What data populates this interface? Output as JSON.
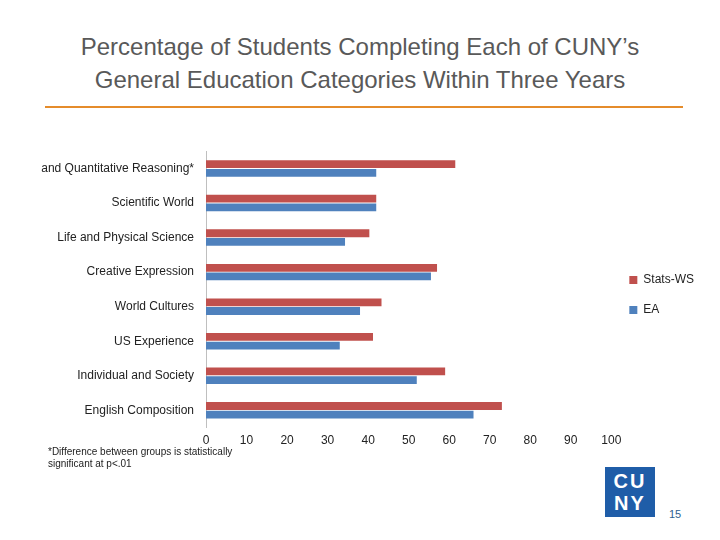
{
  "chart_data": {
    "type": "bar",
    "orientation": "horizontal",
    "title": [
      "Percentage of Students Completing Each of CUNY’s",
      "General Education Categories Within Three Years"
    ],
    "categories": [
      "Mathematical and Quantitative Reasoning*",
      "Scientific World",
      "Life and Physical Science",
      "Creative Expression",
      "World Cultures",
      "US Experience",
      "Individual and Society",
      "English Composition"
    ],
    "series": [
      {
        "name": "Stats-WS",
        "color": "#c0504d",
        "values": [
          61.5,
          42,
          40.3,
          57,
          43.3,
          41.2,
          59,
          73
        ]
      },
      {
        "name": "EA",
        "color": "#4f81bd",
        "values": [
          42,
          42,
          34.3,
          55.5,
          38,
          33,
          52,
          66
        ]
      }
    ],
    "xlim": [
      0,
      100
    ],
    "xticks": [
      0,
      10,
      20,
      30,
      40,
      50,
      60,
      70,
      80,
      90,
      100
    ],
    "grid": false,
    "legend": "right"
  },
  "slide": {
    "footnote": "*Difference between groups is statistically significant at p<.01",
    "logo": [
      "CU",
      "NY"
    ],
    "page_number": "15"
  }
}
